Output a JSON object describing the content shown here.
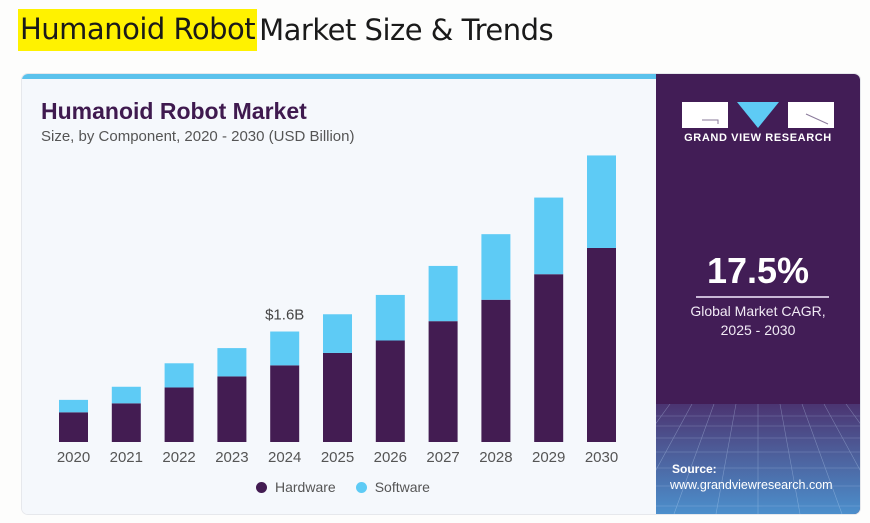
{
  "page_title": {
    "highlighted": "Humanoid Robot",
    "rest": "Market Size & Trends"
  },
  "colors": {
    "hardware": "#431c52",
    "software": "#5ecbf5",
    "panel": "#421d56",
    "highlight": "#fff200"
  },
  "brand": {
    "name": "GRAND VIEW RESEARCH",
    "logo_icon": "gvr-logo-icon"
  },
  "cagr": {
    "value": "17.5%",
    "label_line1": "Global Market CAGR,",
    "label_line2": "2025 - 2030"
  },
  "source": {
    "label": "Source:",
    "url": "www.grandviewresearch.com"
  },
  "chart_data": {
    "type": "bar",
    "stacked": true,
    "title": "Humanoid Robot Market",
    "subtitle": "Size, by Component, 2020 - 2030 (USD Billion)",
    "xlabel": "",
    "ylabel": "",
    "categories": [
      "2020",
      "2021",
      "2022",
      "2023",
      "2024",
      "2025",
      "2026",
      "2027",
      "2028",
      "2029",
      "2030"
    ],
    "series": [
      {
        "name": "Hardware",
        "values": [
          0.43,
          0.56,
          0.79,
          0.95,
          1.11,
          1.29,
          1.47,
          1.75,
          2.06,
          2.43,
          2.81
        ]
      },
      {
        "name": "Software",
        "values": [
          0.18,
          0.24,
          0.35,
          0.41,
          0.49,
          0.56,
          0.66,
          0.8,
          0.95,
          1.11,
          1.34
        ]
      }
    ],
    "annotations": [
      {
        "category": "2024",
        "text": "$1.6B"
      }
    ],
    "ylim": [
      0,
      4.2
    ],
    "grid": false,
    "legend": "bottom"
  }
}
